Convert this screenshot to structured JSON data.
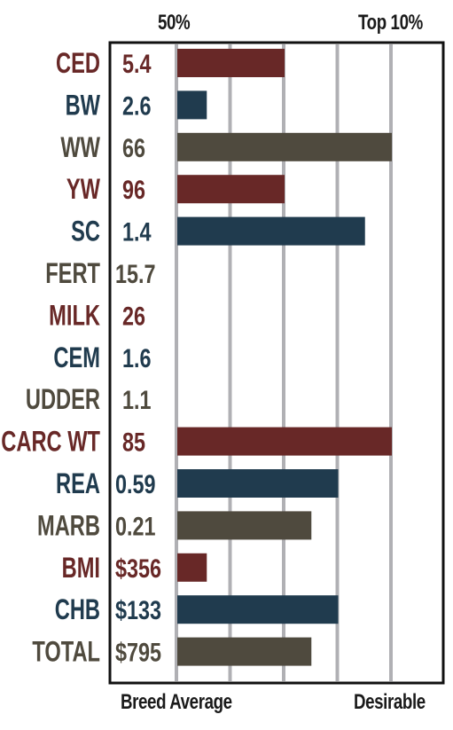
{
  "colors": {
    "red": "#682827",
    "navy": "#203b4e",
    "olive": "#4f4a3e",
    "grid": "#b0b0b4",
    "frame": "#111111"
  },
  "top_labels": {
    "left": "50%",
    "right": "Top 10%"
  },
  "bottom_labels": {
    "left": "Breed Average",
    "right": "Desirable"
  },
  "chart_data": {
    "type": "bar",
    "orientation": "horizontal",
    "title": "",
    "xlabel": "",
    "ylabel": "",
    "xlim": [
      0,
      5
    ],
    "x_tick_labels_top": [
      "50%",
      "Top 10%"
    ],
    "x_tick_labels_bottom": [
      "Breed Average",
      "Desirable"
    ],
    "grid": true,
    "legend": "none",
    "categories": [
      "CED",
      "BW",
      "WW",
      "YW",
      "SC",
      "FERT",
      "MILK",
      "CEM",
      "UDDER",
      "CARC WT",
      "REA",
      "MARB",
      "BMI",
      "CHB",
      "TOTAL"
    ],
    "value_labels": [
      "5.4",
      "2.6",
      "66",
      "96",
      "1.4",
      "15.7",
      "26",
      "1.6",
      "1.1",
      "85",
      "0.59",
      "0.21",
      "$356",
      "$133",
      "$795"
    ],
    "values": [
      2.0,
      0.55,
      4.0,
      2.0,
      3.5,
      0,
      0,
      0,
      0,
      4.0,
      3.0,
      2.5,
      0.55,
      3.0,
      2.5
    ],
    "colors": [
      "red",
      "navy",
      "olive",
      "red",
      "navy",
      "olive",
      "red",
      "navy",
      "olive",
      "red",
      "navy",
      "olive",
      "red",
      "navy",
      "olive"
    ]
  }
}
